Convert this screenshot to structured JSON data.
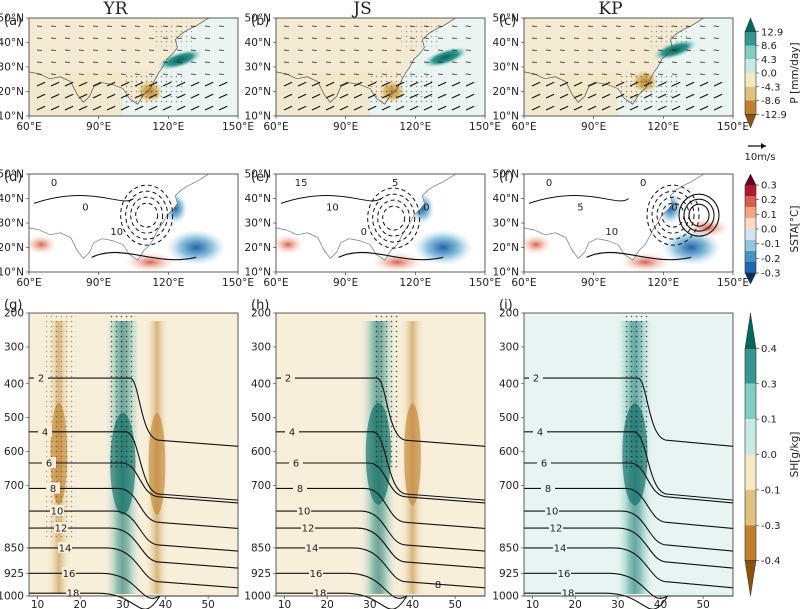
{
  "figure": {
    "columns": [
      "YR",
      "JS",
      "KP"
    ],
    "row1_labels": [
      "(a)",
      "(b)",
      "(c)"
    ],
    "row2_labels": [
      "(d)",
      "(e)",
      "(f)"
    ],
    "row3_labels": [
      "(g)",
      "(h)",
      "(i)"
    ],
    "map_lon_ticks": [
      "60°E",
      "90°E",
      "120°E",
      "150°E"
    ],
    "map_lat_ticks": [
      "50°N",
      "40°N",
      "30°N",
      "20°N",
      "10°N"
    ],
    "section_x_ticks": [
      "10",
      "20",
      "30",
      "40",
      "50"
    ],
    "section_p_ticks": [
      "200",
      "300",
      "400",
      "500",
      "600",
      "700",
      "850",
      "925",
      "1000"
    ]
  },
  "colorbars": {
    "precip": {
      "title": "P [mm/day]",
      "labels": [
        "12.9",
        "8.6",
        "4.3",
        "0.0",
        "-4.3",
        "-8.6",
        "-12.9"
      ],
      "vector_key": "10m/s",
      "colors": [
        "#01665e",
        "#35978f",
        "#80cdc1",
        "#c7eae5",
        "#f6e8c3",
        "#dfc27d",
        "#bf812d",
        "#8c510a"
      ]
    },
    "ssta": {
      "title": "SSTA[°C]",
      "labels": [
        "0.3",
        "0.2",
        "0.1",
        "0.0",
        "-0.1",
        "-0.2",
        "-0.3"
      ],
      "colors": [
        "#67001f",
        "#b2182b",
        "#d6604d",
        "#f4a582",
        "#fddbc7",
        "#d1e5f0",
        "#92c5de",
        "#4393c3",
        "#2166ac",
        "#053061"
      ]
    },
    "sh": {
      "title": "SH[g/kg]",
      "labels": [
        "0.4",
        "0.3",
        "0.1",
        "0.0",
        "-0.1",
        "-0.3",
        "-0.4"
      ],
      "colors": [
        "#01665e",
        "#35978f",
        "#80cdc1",
        "#c7eae5",
        "#f6e8c3",
        "#dfc27d",
        "#bf812d",
        "#8c510a"
      ]
    }
  },
  "chart_data": [
    {
      "type": "heatmap",
      "panel": "(a)",
      "title": "YR",
      "variable": "P [mm/day]",
      "xlim": [
        60,
        150
      ],
      "ylim": [
        10,
        55
      ],
      "anomaly_centers": [
        {
          "lon": 125,
          "lat": 33,
          "value": 12.9
        },
        {
          "lon": 112,
          "lat": 20,
          "value": -8.6
        }
      ]
    },
    {
      "type": "heatmap",
      "panel": "(b)",
      "title": "JS",
      "variable": "P [mm/day]",
      "xlim": [
        60,
        150
      ],
      "ylim": [
        10,
        55
      ],
      "anomaly_centers": [
        {
          "lon": 133,
          "lat": 34,
          "value": 12.9
        },
        {
          "lon": 110,
          "lat": 20,
          "value": -4.3
        }
      ]
    },
    {
      "type": "heatmap",
      "panel": "(c)",
      "title": "KP",
      "variable": "P [mm/day]",
      "xlim": [
        60,
        150
      ],
      "ylim": [
        10,
        55
      ],
      "anomaly_centers": [
        {
          "lon": 125,
          "lat": 37,
          "value": 12.9
        },
        {
          "lon": 112,
          "lat": 24,
          "value": -4.3
        }
      ]
    },
    {
      "type": "heatmap",
      "panel": "(d)",
      "variable": "SSTA[°C]",
      "xlim": [
        60,
        150
      ],
      "ylim": [
        10,
        55
      ],
      "contour_labels": [
        "0",
        "0",
        "10"
      ]
    },
    {
      "type": "heatmap",
      "panel": "(e)",
      "variable": "SSTA[°C]",
      "xlim": [
        60,
        150
      ],
      "ylim": [
        10,
        55
      ],
      "contour_labels": [
        "15",
        "10",
        "0",
        "5",
        "0"
      ]
    },
    {
      "type": "heatmap",
      "panel": "(f)",
      "variable": "SSTA[°C]",
      "xlim": [
        60,
        150
      ],
      "ylim": [
        10,
        55
      ],
      "contour_labels": [
        "0",
        "5",
        "10",
        "0",
        "0"
      ]
    },
    {
      "type": "heatmap",
      "panel": "(g)",
      "variable": "SH[g/kg]",
      "xlim": [
        10,
        55
      ],
      "pressure_levels": [
        200,
        300,
        400,
        500,
        600,
        700,
        850,
        925,
        1000
      ],
      "contour_labels": [
        "2",
        "4",
        "6",
        "8",
        "10",
        "12",
        "14",
        "16",
        "18"
      ],
      "anomaly_centers": [
        {
          "x": 30,
          "p": 650,
          "value": 0.4
        },
        {
          "x": 38,
          "p": 700,
          "value": -0.3
        },
        {
          "x": 15,
          "p": 600,
          "value": -0.1
        }
      ]
    },
    {
      "type": "heatmap",
      "panel": "(h)",
      "variable": "SH[g/kg]",
      "xlim": [
        10,
        55
      ],
      "pressure_levels": [
        200,
        300,
        400,
        500,
        600,
        700,
        850,
        925,
        1000
      ],
      "contour_labels": [
        "2",
        "4",
        "6",
        "8",
        "10",
        "12",
        "14",
        "16",
        "18",
        "8"
      ],
      "anomaly_centers": [
        {
          "x": 32,
          "p": 550,
          "value": 0.4
        },
        {
          "x": 40,
          "p": 850,
          "value": -0.3
        }
      ]
    },
    {
      "type": "heatmap",
      "panel": "(i)",
      "variable": "SH[g/kg]",
      "xlim": [
        10,
        55
      ],
      "pressure_levels": [
        200,
        300,
        400,
        500,
        600,
        700,
        850,
        925,
        1000
      ],
      "contour_labels": [
        "2",
        "4",
        "6",
        "8",
        "10",
        "12",
        "14",
        "16",
        "18"
      ],
      "anomaly_centers": [
        {
          "x": 34,
          "p": 800,
          "value": 0.3
        }
      ]
    }
  ]
}
